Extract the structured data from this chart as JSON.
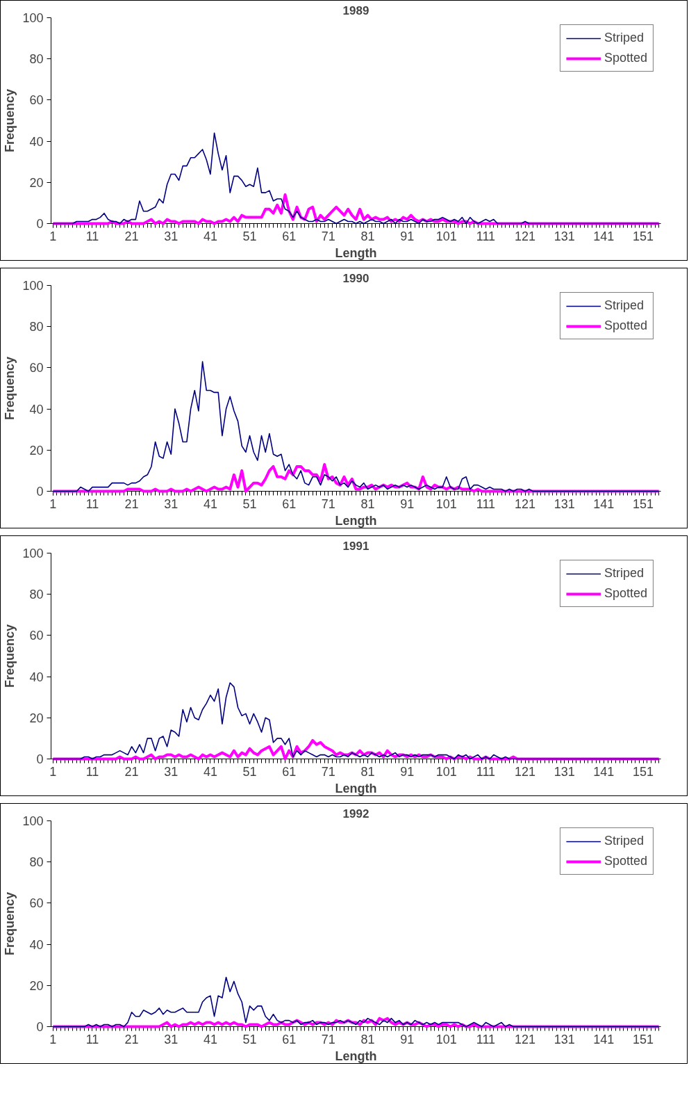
{
  "chart_data": [
    {
      "type": "line",
      "title": "1989",
      "xlabel": "Length",
      "ylabel": "Frequency",
      "xlim": [
        0.5,
        155.5
      ],
      "xticks": [
        1,
        11,
        21,
        31,
        41,
        51,
        61,
        71,
        81,
        91,
        101,
        111,
        121,
        131,
        141,
        151
      ],
      "ylim": [
        0,
        100
      ],
      "yticks": [
        0,
        20,
        40,
        60,
        80,
        100
      ],
      "grid": false,
      "legend": "top right",
      "marker": "none",
      "line_style": "solid",
      "x": [
        1,
        2,
        3,
        4,
        5,
        6,
        7,
        8,
        9,
        10,
        11,
        12,
        13,
        14,
        15,
        16,
        17,
        18,
        19,
        20,
        21,
        22,
        23,
        24,
        25,
        26,
        27,
        28,
        29,
        30,
        31,
        32,
        33,
        34,
        35,
        36,
        37,
        38,
        39,
        40,
        41,
        42,
        43,
        44,
        45,
        46,
        47,
        48,
        49,
        50,
        51,
        52,
        53,
        54,
        55,
        56,
        57,
        58,
        59,
        60,
        61,
        62,
        63,
        64,
        65,
        66,
        67,
        68,
        69,
        70,
        71,
        72,
        73,
        74,
        75,
        76,
        77,
        78,
        79,
        80,
        81,
        82,
        83,
        84,
        85,
        86,
        87,
        88,
        89,
        90,
        91,
        92,
        93,
        94,
        95,
        96,
        97,
        98,
        99,
        100,
        101,
        102,
        103,
        104,
        105,
        106,
        107,
        108,
        109,
        110,
        111,
        112,
        113,
        114,
        115,
        116,
        117,
        118,
        119,
        120,
        121,
        122,
        123,
        124,
        125,
        126,
        127,
        128,
        129,
        130,
        131,
        132,
        133,
        134,
        135,
        136,
        137,
        138,
        139,
        140,
        141,
        142,
        143,
        144,
        145,
        146,
        147,
        148,
        149,
        150,
        151,
        152,
        153,
        154,
        155
      ],
      "series": [
        {
          "name": "Striped",
          "color": "#000080",
          "values": [
            0,
            0,
            0,
            0,
            0,
            0,
            1,
            1,
            1,
            1,
            2,
            2,
            3,
            5,
            2,
            1,
            1,
            0,
            2,
            1,
            2,
            2,
            11,
            6,
            6,
            7,
            8,
            12,
            10,
            19,
            24,
            24,
            21,
            28,
            28,
            32,
            32,
            34,
            36,
            31,
            24,
            44,
            34,
            26,
            33,
            15,
            23,
            23,
            21,
            18,
            19,
            18,
            27,
            15,
            15,
            16,
            11,
            12,
            12,
            7,
            6,
            3,
            6,
            3,
            2,
            1,
            1,
            2,
            1,
            1,
            2,
            1,
            0,
            1,
            2,
            1,
            1,
            0,
            1,
            0,
            1,
            2,
            1,
            1,
            0,
            1,
            2,
            0,
            2,
            1,
            1,
            2,
            1,
            0,
            2,
            1,
            1,
            2,
            2,
            3,
            2,
            1,
            2,
            1,
            3,
            0,
            3,
            1,
            0,
            1,
            2,
            1,
            2,
            0,
            0,
            0,
            0,
            0,
            0,
            0,
            1,
            0,
            0,
            0,
            0,
            0,
            0,
            0,
            0,
            0,
            0,
            0,
            0,
            0,
            0,
            0,
            0,
            0,
            0,
            0,
            0,
            0,
            0,
            0,
            0,
            0,
            0,
            0,
            0,
            0,
            0,
            0,
            0,
            0,
            0
          ]
        },
        {
          "name": "Spotted",
          "color": "#ff00ff",
          "values": [
            0,
            0,
            0,
            0,
            0,
            0,
            0,
            0,
            0,
            0,
            0,
            0,
            0,
            0,
            0,
            1,
            0,
            0,
            0,
            1,
            0,
            0,
            0,
            0,
            1,
            2,
            0,
            1,
            0,
            2,
            1,
            1,
            0,
            1,
            1,
            1,
            1,
            0,
            2,
            1,
            1,
            0,
            1,
            1,
            2,
            1,
            3,
            1,
            4,
            3,
            3,
            3,
            3,
            3,
            7,
            7,
            5,
            9,
            5,
            14,
            6,
            2,
            8,
            3,
            2,
            7,
            8,
            1,
            4,
            2,
            4,
            6,
            8,
            6,
            4,
            7,
            4,
            2,
            7,
            2,
            4,
            2,
            3,
            2,
            2,
            3,
            1,
            2,
            1,
            3,
            2,
            4,
            2,
            1,
            2,
            1,
            2,
            1,
            1,
            2,
            1,
            1,
            1,
            0,
            1,
            1,
            0,
            1,
            0,
            0,
            0,
            0,
            0,
            0,
            0,
            0,
            0,
            0,
            0,
            0,
            0,
            0,
            0,
            0,
            0,
            0,
            0,
            0,
            0,
            0,
            0,
            0,
            0,
            0,
            0,
            0,
            0,
            0,
            0,
            0,
            0,
            0,
            0,
            0,
            0,
            0,
            0,
            0,
            0,
            0,
            0,
            0,
            0,
            0,
            0
          ]
        }
      ]
    },
    {
      "type": "line",
      "title": "1990",
      "xlabel": "Length",
      "ylabel": "Frequency",
      "xlim": [
        0.5,
        155.5
      ],
      "xticks": [
        1,
        11,
        21,
        31,
        41,
        51,
        61,
        71,
        81,
        91,
        101,
        111,
        121,
        131,
        141,
        151
      ],
      "ylim": [
        0,
        100
      ],
      "yticks": [
        0,
        20,
        40,
        60,
        80,
        100
      ],
      "grid": false,
      "legend": "top right",
      "marker": "none",
      "line_style": "solid",
      "x": [
        1,
        2,
        3,
        4,
        5,
        6,
        7,
        8,
        9,
        10,
        11,
        12,
        13,
        14,
        15,
        16,
        17,
        18,
        19,
        20,
        21,
        22,
        23,
        24,
        25,
        26,
        27,
        28,
        29,
        30,
        31,
        32,
        33,
        34,
        35,
        36,
        37,
        38,
        39,
        40,
        41,
        42,
        43,
        44,
        45,
        46,
        47,
        48,
        49,
        50,
        51,
        52,
        53,
        54,
        55,
        56,
        57,
        58,
        59,
        60,
        61,
        62,
        63,
        64,
        65,
        66,
        67,
        68,
        69,
        70,
        71,
        72,
        73,
        74,
        75,
        76,
        77,
        78,
        79,
        80,
        81,
        82,
        83,
        84,
        85,
        86,
        87,
        88,
        89,
        90,
        91,
        92,
        93,
        94,
        95,
        96,
        97,
        98,
        99,
        100,
        101,
        102,
        103,
        104,
        105,
        106,
        107,
        108,
        109,
        110,
        111,
        112,
        113,
        114,
        115,
        116,
        117,
        118,
        119,
        120,
        121,
        122,
        123,
        124,
        125,
        126,
        127,
        128,
        129,
        130,
        131,
        132,
        133,
        134,
        135,
        136,
        137,
        138,
        139,
        140,
        141,
        142,
        143,
        144,
        145,
        146,
        147,
        148,
        149,
        150,
        151,
        152,
        153,
        154,
        155
      ],
      "series": [
        {
          "name": "Striped",
          "color": "#000080",
          "values": [
            0,
            0,
            0,
            0,
            0,
            0,
            0,
            2,
            1,
            0,
            2,
            2,
            2,
            2,
            2,
            4,
            4,
            4,
            4,
            3,
            4,
            4,
            5,
            7,
            8,
            12,
            24,
            17,
            16,
            24,
            18,
            40,
            33,
            24,
            24,
            40,
            49,
            39,
            63,
            49,
            49,
            48,
            48,
            27,
            40,
            46,
            39,
            34,
            22,
            19,
            27,
            19,
            15,
            27,
            19,
            28,
            18,
            17,
            18,
            10,
            13,
            8,
            6,
            10,
            4,
            3,
            7,
            7,
            3,
            8,
            7,
            5,
            7,
            3,
            4,
            2,
            5,
            3,
            2,
            4,
            1,
            2,
            3,
            2,
            3,
            1,
            2,
            3,
            2,
            3,
            2,
            3,
            2,
            1,
            2,
            3,
            2,
            1,
            2,
            2,
            7,
            2,
            1,
            1,
            6,
            7,
            1,
            3,
            3,
            2,
            1,
            2,
            1,
            1,
            1,
            0,
            1,
            0,
            1,
            1,
            0,
            1,
            0,
            0,
            0,
            0,
            0,
            0,
            0,
            0,
            0,
            0,
            0,
            0,
            0,
            0,
            0,
            0,
            0,
            0,
            0,
            0,
            0,
            0,
            0,
            0,
            0,
            0,
            0,
            0,
            0,
            0,
            0,
            0,
            0
          ]
        },
        {
          "name": "Spotted",
          "color": "#ff00ff",
          "values": [
            0,
            0,
            0,
            0,
            0,
            0,
            0,
            0,
            0,
            0,
            0,
            0,
            0,
            0,
            0,
            0,
            0,
            0,
            0,
            1,
            1,
            1,
            1,
            0,
            0,
            0,
            1,
            0,
            0,
            0,
            1,
            0,
            0,
            0,
            1,
            0,
            1,
            2,
            1,
            0,
            1,
            2,
            1,
            1,
            2,
            1,
            8,
            2,
            10,
            0,
            2,
            4,
            4,
            3,
            6,
            10,
            12,
            7,
            7,
            6,
            10,
            8,
            12,
            12,
            10,
            10,
            8,
            8,
            5,
            13,
            6,
            7,
            4,
            3,
            7,
            3,
            6,
            1,
            1,
            2,
            2,
            3,
            1,
            2,
            3,
            2,
            3,
            2,
            2,
            3,
            4,
            2,
            2,
            1,
            7,
            2,
            1,
            3,
            2,
            2,
            1,
            2,
            1,
            2,
            1,
            1,
            1,
            0,
            1,
            0,
            0,
            0,
            0,
            0,
            0,
            0,
            0,
            0,
            0,
            0,
            0,
            0,
            0,
            0,
            0,
            0,
            0,
            0,
            0,
            0,
            0,
            0,
            0,
            0,
            0,
            0,
            0,
            0,
            0,
            0,
            0,
            0,
            0,
            0,
            0,
            0,
            0,
            0,
            0,
            0,
            0,
            0,
            0,
            0,
            0
          ]
        }
      ]
    },
    {
      "type": "line",
      "title": "1991",
      "xlabel": "Length",
      "ylabel": "Frequency",
      "xlim": [
        0.5,
        155.5
      ],
      "xticks": [
        1,
        11,
        21,
        31,
        41,
        51,
        61,
        71,
        81,
        91,
        101,
        111,
        121,
        131,
        141,
        151
      ],
      "ylim": [
        0,
        100
      ],
      "yticks": [
        0,
        20,
        40,
        60,
        80,
        100
      ],
      "grid": false,
      "legend": "top right",
      "marker": "none",
      "line_style": "solid",
      "x": [
        1,
        2,
        3,
        4,
        5,
        6,
        7,
        8,
        9,
        10,
        11,
        12,
        13,
        14,
        15,
        16,
        17,
        18,
        19,
        20,
        21,
        22,
        23,
        24,
        25,
        26,
        27,
        28,
        29,
        30,
        31,
        32,
        33,
        34,
        35,
        36,
        37,
        38,
        39,
        40,
        41,
        42,
        43,
        44,
        45,
        46,
        47,
        48,
        49,
        50,
        51,
        52,
        53,
        54,
        55,
        56,
        57,
        58,
        59,
        60,
        61,
        62,
        63,
        64,
        65,
        66,
        67,
        68,
        69,
        70,
        71,
        72,
        73,
        74,
        75,
        76,
        77,
        78,
        79,
        80,
        81,
        82,
        83,
        84,
        85,
        86,
        87,
        88,
        89,
        90,
        91,
        92,
        93,
        94,
        95,
        96,
        97,
        98,
        99,
        100,
        101,
        102,
        103,
        104,
        105,
        106,
        107,
        108,
        109,
        110,
        111,
        112,
        113,
        114,
        115,
        116,
        117,
        118,
        119,
        120,
        121,
        122,
        123,
        124,
        125,
        126,
        127,
        128,
        129,
        130,
        131,
        132,
        133,
        134,
        135,
        136,
        137,
        138,
        139,
        140,
        141,
        142,
        143,
        144,
        145,
        146,
        147,
        148,
        149,
        150,
        151,
        152,
        153,
        154,
        155
      ],
      "series": [
        {
          "name": "Striped",
          "color": "#000080",
          "values": [
            0,
            0,
            0,
            0,
            0,
            0,
            0,
            0,
            1,
            1,
            0,
            1,
            1,
            2,
            2,
            2,
            3,
            4,
            3,
            2,
            6,
            3,
            7,
            3,
            10,
            10,
            4,
            10,
            11,
            6,
            14,
            13,
            11,
            24,
            18,
            25,
            20,
            19,
            24,
            27,
            31,
            28,
            34,
            17,
            30,
            37,
            35,
            25,
            21,
            22,
            17,
            22,
            18,
            13,
            20,
            19,
            8,
            10,
            10,
            7,
            10,
            1,
            4,
            2,
            4,
            3,
            2,
            1,
            2,
            2,
            1,
            2,
            1,
            1,
            2,
            1,
            3,
            2,
            1,
            2,
            1,
            3,
            2,
            1,
            2,
            1,
            2,
            3,
            1,
            2,
            2,
            1,
            2,
            1,
            2,
            2,
            2,
            1,
            2,
            2,
            2,
            1,
            0,
            2,
            1,
            2,
            0,
            1,
            2,
            0,
            1,
            0,
            2,
            1,
            0,
            1,
            0,
            0,
            0,
            0,
            0,
            0,
            0,
            0,
            0,
            0,
            0,
            0,
            0,
            0,
            0,
            0,
            0,
            0,
            0,
            0,
            0,
            0,
            0,
            0,
            0,
            0,
            0,
            0,
            0,
            0,
            0,
            0,
            0,
            0,
            0,
            0,
            0,
            0,
            0
          ]
        },
        {
          "name": "Spotted",
          "color": "#ff00ff",
          "values": [
            0,
            0,
            0,
            0,
            0,
            0,
            0,
            0,
            0,
            0,
            0,
            0,
            0,
            0,
            0,
            0,
            0,
            1,
            0,
            0,
            0,
            1,
            0,
            0,
            1,
            2,
            0,
            1,
            1,
            2,
            2,
            1,
            2,
            1,
            1,
            2,
            1,
            0,
            2,
            1,
            2,
            1,
            2,
            3,
            2,
            1,
            4,
            1,
            3,
            2,
            5,
            3,
            2,
            4,
            5,
            6,
            2,
            4,
            6,
            0,
            4,
            1,
            6,
            3,
            4,
            6,
            9,
            7,
            8,
            6,
            5,
            4,
            2,
            3,
            2,
            2,
            3,
            2,
            4,
            2,
            3,
            3,
            2,
            3,
            1,
            4,
            2,
            1,
            2,
            2,
            1,
            2,
            1,
            2,
            1,
            1,
            2,
            1,
            1,
            1,
            0,
            1,
            0,
            1,
            1,
            0,
            1,
            0,
            0,
            0,
            1,
            0,
            0,
            0,
            0,
            0,
            0,
            1,
            0,
            0,
            0,
            0,
            0,
            0,
            0,
            0,
            0,
            0,
            0,
            0,
            0,
            0,
            0,
            0,
            0,
            0,
            0,
            0,
            0,
            0,
            0,
            0,
            0,
            0,
            0,
            0,
            0,
            0,
            0,
            0,
            0,
            0,
            0,
            0,
            0
          ]
        }
      ]
    },
    {
      "type": "line",
      "title": "1992",
      "xlabel": "Length",
      "ylabel": "Frequency",
      "xlim": [
        0.5,
        155.5
      ],
      "xticks": [
        1,
        11,
        21,
        31,
        41,
        51,
        61,
        71,
        81,
        91,
        101,
        111,
        121,
        131,
        141,
        151
      ],
      "ylim": [
        0,
        100
      ],
      "yticks": [
        0,
        20,
        40,
        60,
        80,
        100
      ],
      "grid": false,
      "legend": "top right",
      "marker": "none",
      "line_style": "solid",
      "x": [
        1,
        2,
        3,
        4,
        5,
        6,
        7,
        8,
        9,
        10,
        11,
        12,
        13,
        14,
        15,
        16,
        17,
        18,
        19,
        20,
        21,
        22,
        23,
        24,
        25,
        26,
        27,
        28,
        29,
        30,
        31,
        32,
        33,
        34,
        35,
        36,
        37,
        38,
        39,
        40,
        41,
        42,
        43,
        44,
        45,
        46,
        47,
        48,
        49,
        50,
        51,
        52,
        53,
        54,
        55,
        56,
        57,
        58,
        59,
        60,
        61,
        62,
        63,
        64,
        65,
        66,
        67,
        68,
        69,
        70,
        71,
        72,
        73,
        74,
        75,
        76,
        77,
        78,
        79,
        80,
        81,
        82,
        83,
        84,
        85,
        86,
        87,
        88,
        89,
        90,
        91,
        92,
        93,
        94,
        95,
        96,
        97,
        98,
        99,
        100,
        101,
        102,
        103,
        104,
        105,
        106,
        107,
        108,
        109,
        110,
        111,
        112,
        113,
        114,
        115,
        116,
        117,
        118,
        119,
        120,
        121,
        122,
        123,
        124,
        125,
        126,
        127,
        128,
        129,
        130,
        131,
        132,
        133,
        134,
        135,
        136,
        137,
        138,
        139,
        140,
        141,
        142,
        143,
        144,
        145,
        146,
        147,
        148,
        149,
        150,
        151,
        152,
        153,
        154,
        155
      ],
      "series": [
        {
          "name": "Striped",
          "color": "#000080",
          "values": [
            0,
            0,
            0,
            0,
            0,
            0,
            0,
            0,
            0,
            1,
            0,
            1,
            0,
            1,
            1,
            0,
            1,
            1,
            0,
            2,
            7,
            5,
            5,
            8,
            7,
            6,
            7,
            9,
            6,
            8,
            7,
            7,
            8,
            9,
            7,
            7,
            7,
            7,
            12,
            14,
            15,
            5,
            15,
            14,
            24,
            17,
            22,
            16,
            12,
            2,
            10,
            8,
            10,
            10,
            5,
            3,
            6,
            3,
            2,
            3,
            3,
            2,
            3,
            1,
            2,
            2,
            3,
            1,
            2,
            2,
            1,
            2,
            2,
            3,
            2,
            3,
            2,
            1,
            3,
            2,
            4,
            3,
            2,
            1,
            3,
            2,
            4,
            2,
            3,
            1,
            2,
            1,
            3,
            2,
            1,
            2,
            1,
            2,
            1,
            2,
            2,
            2,
            2,
            2,
            1,
            0,
            1,
            2,
            1,
            0,
            2,
            1,
            0,
            1,
            2,
            0,
            1,
            0,
            0,
            0,
            0,
            0,
            0,
            0,
            0,
            0,
            0,
            0,
            0,
            0,
            0,
            0,
            0,
            0,
            0,
            0,
            0,
            0,
            0,
            0,
            0,
            0,
            0,
            0,
            0,
            0,
            0,
            0,
            0,
            0,
            0,
            0,
            0,
            0,
            0
          ]
        },
        {
          "name": "Spotted",
          "color": "#ff00ff",
          "values": [
            0,
            0,
            0,
            0,
            0,
            0,
            0,
            0,
            0,
            0,
            0,
            0,
            0,
            0,
            0,
            0,
            0,
            0,
            0,
            0,
            0,
            0,
            0,
            0,
            0,
            0,
            0,
            0,
            1,
            2,
            0,
            1,
            0,
            1,
            1,
            2,
            1,
            2,
            1,
            2,
            2,
            1,
            2,
            1,
            2,
            1,
            2,
            1,
            1,
            0,
            1,
            1,
            1,
            0,
            1,
            2,
            1,
            1,
            2,
            1,
            1,
            2,
            3,
            2,
            1,
            2,
            1,
            2,
            2,
            1,
            2,
            1,
            3,
            2,
            2,
            3,
            2,
            2,
            1,
            3,
            2,
            3,
            1,
            4,
            3,
            4,
            2,
            1,
            2,
            1,
            2,
            1,
            1,
            2,
            1,
            0,
            1,
            1,
            0,
            1,
            1,
            0,
            1,
            0,
            1,
            0,
            0,
            1,
            0,
            0,
            0,
            0,
            0,
            0,
            0,
            0,
            0,
            0,
            0,
            0,
            0,
            0,
            0,
            0,
            0,
            0,
            0,
            0,
            0,
            0,
            0,
            0,
            0,
            0,
            0,
            0,
            0,
            0,
            0,
            0,
            0,
            0,
            0,
            0,
            0,
            0,
            0,
            0,
            0,
            0,
            0,
            0,
            0,
            0,
            0
          ]
        }
      ]
    }
  ]
}
